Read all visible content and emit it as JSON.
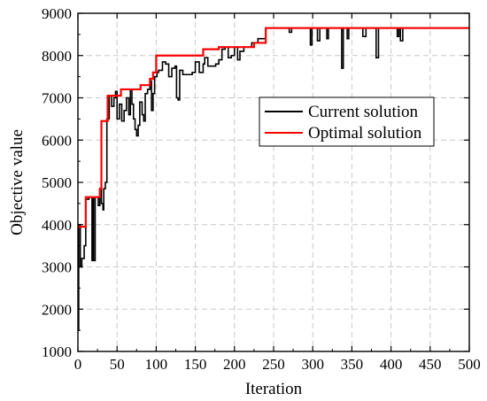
{
  "chart_data": {
    "type": "line",
    "title": "",
    "xlabel": "Iteration",
    "ylabel": "Objective value",
    "xlim": [
      0,
      500
    ],
    "ylim": [
      1000,
      9000
    ],
    "x_ticks": [
      0,
      50,
      100,
      150,
      200,
      250,
      300,
      350,
      400,
      450,
      500
    ],
    "y_ticks": [
      1000,
      2000,
      3000,
      4000,
      5000,
      6000,
      7000,
      8000,
      9000
    ],
    "grid": true,
    "legend_position": "center-right",
    "series": [
      {
        "name": "Current solution",
        "color": "#000000",
        "step": "post",
        "points": [
          [
            0,
            1500
          ],
          [
            1,
            4000
          ],
          [
            3,
            3000
          ],
          [
            5,
            3200
          ],
          [
            8,
            3500
          ],
          [
            10,
            4600
          ],
          [
            14,
            4650
          ],
          [
            18,
            3150
          ],
          [
            19,
            4650
          ],
          [
            20,
            3150
          ],
          [
            22,
            4650
          ],
          [
            26,
            4450
          ],
          [
            28,
            4850
          ],
          [
            30,
            4500
          ],
          [
            32,
            4350
          ],
          [
            33,
            4850
          ],
          [
            35,
            5000
          ],
          [
            37,
            6500
          ],
          [
            40,
            7050
          ],
          [
            43,
            6800
          ],
          [
            46,
            7000
          ],
          [
            48,
            7150
          ],
          [
            50,
            6500
          ],
          [
            53,
            6850
          ],
          [
            56,
            6450
          ],
          [
            59,
            6700
          ],
          [
            62,
            7000
          ],
          [
            65,
            6600
          ],
          [
            67,
            7200
          ],
          [
            69,
            6850
          ],
          [
            71,
            6500
          ],
          [
            73,
            6250
          ],
          [
            75,
            6100
          ],
          [
            77,
            6350
          ],
          [
            79,
            6900
          ],
          [
            82,
            6600
          ],
          [
            84,
            6450
          ],
          [
            86,
            7100
          ],
          [
            89,
            7200
          ],
          [
            92,
            7400
          ],
          [
            94,
            6700
          ],
          [
            96,
            7100
          ],
          [
            98,
            7500
          ],
          [
            101,
            7600
          ],
          [
            103,
            7650
          ],
          [
            108,
            7850
          ],
          [
            112,
            7800
          ],
          [
            116,
            7500
          ],
          [
            120,
            7700
          ],
          [
            124,
            7750
          ],
          [
            126,
            7000
          ],
          [
            128,
            6950
          ],
          [
            130,
            7650
          ],
          [
            134,
            7550
          ],
          [
            146,
            7600
          ],
          [
            150,
            7850
          ],
          [
            155,
            7600
          ],
          [
            160,
            7800
          ],
          [
            162,
            7950
          ],
          [
            166,
            7750
          ],
          [
            176,
            7800
          ],
          [
            180,
            7900
          ],
          [
            184,
            8150
          ],
          [
            188,
            8200
          ],
          [
            192,
            7950
          ],
          [
            196,
            8000
          ],
          [
            200,
            8200
          ],
          [
            204,
            7900
          ],
          [
            207,
            8100
          ],
          [
            212,
            8200
          ],
          [
            222,
            8300
          ],
          [
            230,
            8400
          ],
          [
            240,
            8650
          ],
          [
            270,
            8550
          ],
          [
            273,
            8650
          ],
          [
            297,
            8250
          ],
          [
            299,
            8650
          ],
          [
            306,
            8350
          ],
          [
            309,
            8650
          ],
          [
            318,
            8400
          ],
          [
            320,
            8650
          ],
          [
            337,
            7700
          ],
          [
            339,
            8650
          ],
          [
            344,
            8400
          ],
          [
            346,
            8650
          ],
          [
            364,
            8450
          ],
          [
            368,
            8650
          ],
          [
            381,
            7950
          ],
          [
            384,
            8650
          ],
          [
            408,
            8450
          ],
          [
            410,
            8650
          ],
          [
            412,
            8350
          ],
          [
            415,
            8650
          ],
          [
            500,
            8650
          ]
        ]
      },
      {
        "name": "Optimal solution",
        "color": "#ff0000",
        "step": "post",
        "points": [
          [
            0,
            3950
          ],
          [
            10,
            4650
          ],
          [
            28,
            4850
          ],
          [
            30,
            6450
          ],
          [
            38,
            7050
          ],
          [
            55,
            7200
          ],
          [
            80,
            7300
          ],
          [
            92,
            7450
          ],
          [
            96,
            7600
          ],
          [
            100,
            8000
          ],
          [
            160,
            8150
          ],
          [
            180,
            8200
          ],
          [
            225,
            8300
          ],
          [
            240,
            8650
          ],
          [
            500,
            8650
          ]
        ]
      }
    ]
  }
}
